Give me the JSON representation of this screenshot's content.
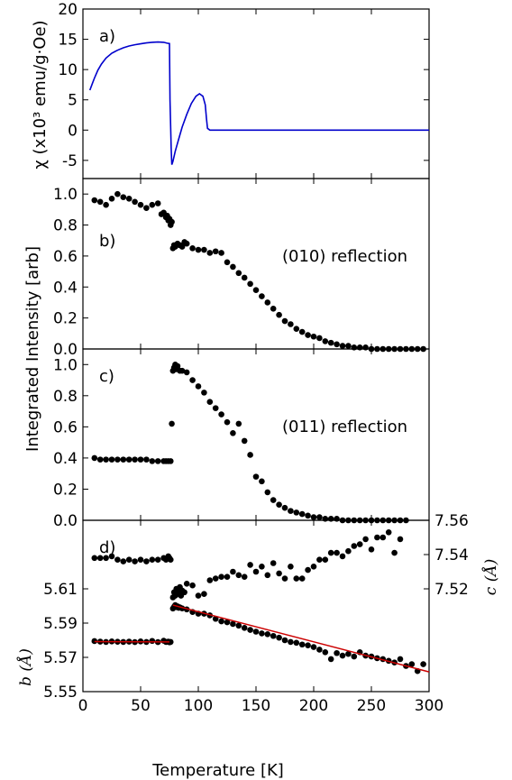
{
  "chart_data": [
    {
      "panel": "a)",
      "type": "line",
      "ylabel": "χ (x10³ emu/g·Oe)",
      "ylim": [
        -8,
        20
      ],
      "yticks": [
        -5,
        0,
        5,
        10,
        15,
        20
      ],
      "xlim": [
        0,
        300
      ],
      "color": "#0000cc",
      "series": [
        {
          "x": [
            6,
            8,
            10,
            13,
            16,
            20,
            25,
            30,
            35,
            40,
            45,
            50,
            55,
            60,
            65,
            70,
            73,
            75,
            75.5,
            76.5,
            77,
            78,
            80,
            83,
            86,
            90,
            94,
            98,
            101,
            104,
            106,
            107,
            108,
            110,
            120,
            150,
            200,
            250,
            300
          ],
          "y": [
            6.6,
            7.6,
            8.6,
            9.9,
            10.9,
            11.9,
            12.7,
            13.2,
            13.6,
            13.9,
            14.1,
            14.25,
            14.4,
            14.5,
            14.55,
            14.5,
            14.35,
            14.3,
            5,
            -3,
            -5.7,
            -5.2,
            -3.5,
            -1.5,
            0.5,
            2.6,
            4.4,
            5.6,
            6.0,
            5.6,
            4.2,
            2.0,
            0.3,
            0.0,
            0.0,
            0.0,
            0.0,
            0.0,
            0.0
          ]
        }
      ]
    },
    {
      "panel": "b)",
      "type": "scatter",
      "annotation": "(010) reflection",
      "ylim": [
        0,
        1.1
      ],
      "yticks": [
        "0.0",
        "0.2",
        "0.4",
        "0.6",
        "0.8",
        "1.0"
      ],
      "xlim": [
        0,
        300
      ],
      "x": [
        10,
        15,
        20,
        25,
        30,
        35,
        40,
        45,
        50,
        55,
        60,
        65,
        68,
        70,
        72,
        73,
        74,
        75,
        76,
        77,
        78,
        79,
        80,
        82,
        84,
        86,
        88,
        90,
        95,
        100,
        105,
        110,
        115,
        120,
        125,
        130,
        135,
        140,
        145,
        150,
        155,
        160,
        165,
        170,
        175,
        180,
        185,
        190,
        195,
        200,
        205,
        210,
        215,
        220,
        225,
        230,
        235,
        240,
        245,
        250,
        255,
        260,
        265,
        270,
        275,
        280,
        285,
        290,
        295
      ],
      "y": [
        0.96,
        0.95,
        0.93,
        0.97,
        1.0,
        0.98,
        0.97,
        0.95,
        0.93,
        0.91,
        0.93,
        0.94,
        0.87,
        0.88,
        0.85,
        0.86,
        0.83,
        0.84,
        0.8,
        0.82,
        0.65,
        0.67,
        0.66,
        0.68,
        0.67,
        0.66,
        0.69,
        0.68,
        0.65,
        0.64,
        0.64,
        0.62,
        0.63,
        0.62,
        0.56,
        0.53,
        0.49,
        0.46,
        0.42,
        0.38,
        0.34,
        0.3,
        0.26,
        0.22,
        0.18,
        0.16,
        0.13,
        0.11,
        0.09,
        0.08,
        0.07,
        0.05,
        0.04,
        0.03,
        0.02,
        0.02,
        0.01,
        0.01,
        0.01,
        0.0,
        0.0,
        0.0,
        0.0,
        0.0,
        0.0,
        0.0,
        0.0,
        0.0,
        0.0
      ]
    },
    {
      "panel": "c)",
      "type": "scatter",
      "annotation": "(011) reflection",
      "ylabel": "Integrated Intensity [arb]",
      "ylim": [
        0,
        1.1
      ],
      "yticks": [
        "0.0",
        "0.2",
        "0.4",
        "0.6",
        "0.8",
        "1.0"
      ],
      "xlim": [
        0,
        300
      ],
      "x": [
        10,
        15,
        20,
        25,
        30,
        35,
        40,
        45,
        50,
        55,
        60,
        65,
        70,
        72,
        74,
        76,
        77,
        78,
        79,
        80,
        81,
        82,
        84,
        86,
        90,
        95,
        100,
        105,
        110,
        115,
        120,
        125,
        130,
        135,
        140,
        145,
        150,
        155,
        160,
        165,
        170,
        175,
        180,
        185,
        190,
        195,
        200,
        205,
        210,
        215,
        220,
        225,
        230,
        235,
        240,
        245,
        250,
        255,
        260,
        265,
        270,
        275,
        280
      ],
      "y": [
        0.4,
        0.39,
        0.39,
        0.39,
        0.39,
        0.39,
        0.39,
        0.39,
        0.39,
        0.39,
        0.38,
        0.38,
        0.38,
        0.38,
        0.38,
        0.38,
        0.62,
        0.96,
        0.98,
        1.0,
        0.97,
        0.99,
        0.96,
        0.96,
        0.95,
        0.9,
        0.86,
        0.82,
        0.76,
        0.72,
        0.68,
        0.63,
        0.56,
        0.62,
        0.51,
        0.42,
        0.28,
        0.25,
        0.18,
        0.13,
        0.1,
        0.08,
        0.06,
        0.05,
        0.04,
        0.03,
        0.02,
        0.02,
        0.01,
        0.01,
        0.01,
        0.0,
        0.0,
        0.0,
        0.0,
        0.0,
        0.0,
        0.0,
        0.0,
        0.0,
        0.0,
        0.0,
        0.0
      ]
    },
    {
      "panel": "d)",
      "type": "scatter",
      "xlabel": "Temperature [K]",
      "xlim": [
        0,
        300
      ],
      "xticks": [
        0,
        50,
        100,
        150,
        200,
        250,
        300
      ],
      "ylabel_left": "b (Å)",
      "ylim_left": [
        5.55,
        5.65
      ],
      "yticks_left": [
        "5.55",
        "5.57",
        "5.59",
        "5.61"
      ],
      "ylabel_right": "c (Å)",
      "ylim_right": [
        7.46,
        7.56
      ],
      "yticks_right": [
        "7.52",
        "7.54",
        "7.56"
      ],
      "series": [
        {
          "axis": "right",
          "x": [
            10,
            15,
            20,
            25,
            30,
            35,
            40,
            45,
            50,
            55,
            60,
            65,
            70,
            72,
            74,
            75,
            76,
            78,
            79,
            80,
            81,
            82,
            83,
            84,
            85,
            86,
            88,
            90,
            95,
            100,
            105,
            110,
            115,
            120,
            125,
            130,
            135,
            140,
            145,
            150,
            155,
            160,
            165,
            170,
            175,
            180,
            185,
            190,
            195,
            200,
            205,
            210,
            215,
            220,
            225,
            230,
            235,
            240,
            245,
            250,
            255,
            260,
            265,
            270,
            275
          ],
          "y": [
            7.538,
            7.538,
            7.538,
            7.539,
            7.537,
            7.536,
            7.537,
            7.536,
            7.537,
            7.536,
            7.537,
            7.537,
            7.538,
            7.537,
            7.539,
            7.538,
            7.537,
            7.515,
            7.518,
            7.516,
            7.52,
            7.517,
            7.519,
            7.521,
            7.516,
            7.519,
            7.518,
            7.523,
            7.522,
            7.516,
            7.517,
            7.525,
            7.526,
            7.527,
            7.527,
            7.53,
            7.528,
            7.527,
            7.534,
            7.53,
            7.533,
            7.528,
            7.535,
            7.529,
            7.526,
            7.533,
            7.526,
            7.526,
            7.531,
            7.533,
            7.537,
            7.537,
            7.541,
            7.541,
            7.539,
            7.542,
            7.545,
            7.546,
            7.549,
            7.543,
            7.55,
            7.55,
            7.553,
            7.541,
            7.549
          ]
        },
        {
          "axis": "left",
          "x": [
            10,
            15,
            20,
            25,
            30,
            35,
            40,
            45,
            50,
            55,
            60,
            65,
            70,
            72,
            74,
            75,
            76,
            78,
            79,
            80,
            81,
            82,
            83,
            84,
            86,
            90,
            95,
            100,
            105,
            110,
            115,
            120,
            125,
            130,
            135,
            140,
            145,
            150,
            155,
            160,
            165,
            170,
            175,
            180,
            185,
            190,
            195,
            200,
            205,
            210,
            215,
            220,
            225,
            230,
            235,
            240,
            245,
            250,
            255,
            260,
            265,
            270,
            275,
            280,
            285,
            290,
            295
          ],
          "y": [
            5.5795,
            5.5792,
            5.579,
            5.5793,
            5.5791,
            5.579,
            5.5792,
            5.5789,
            5.5793,
            5.579,
            5.5796,
            5.5789,
            5.5797,
            5.579,
            5.5792,
            5.5788,
            5.579,
            5.5985,
            5.5995,
            5.6005,
            5.5993,
            5.5998,
            5.5989,
            5.5992,
            5.5986,
            5.598,
            5.5965,
            5.5955,
            5.5955,
            5.5945,
            5.5925,
            5.591,
            5.5905,
            5.5895,
            5.5885,
            5.5872,
            5.586,
            5.585,
            5.584,
            5.5835,
            5.5825,
            5.5815,
            5.58,
            5.579,
            5.5785,
            5.5775,
            5.577,
            5.576,
            5.5745,
            5.573,
            5.569,
            5.5725,
            5.571,
            5.572,
            5.5705,
            5.573,
            5.571,
            5.5705,
            5.5695,
            5.569,
            5.568,
            5.567,
            5.569,
            5.565,
            5.566,
            5.562,
            5.566
          ]
        }
      ],
      "fits": [
        {
          "axis": "left",
          "color": "#cc0000",
          "x": [
            10,
            75
          ],
          "y": [
            5.5792,
            5.579
          ]
        },
        {
          "axis": "left",
          "color": "#cc0000",
          "x": [
            78,
            300
          ],
          "y": [
            5.6005,
            5.5615
          ]
        }
      ]
    }
  ]
}
